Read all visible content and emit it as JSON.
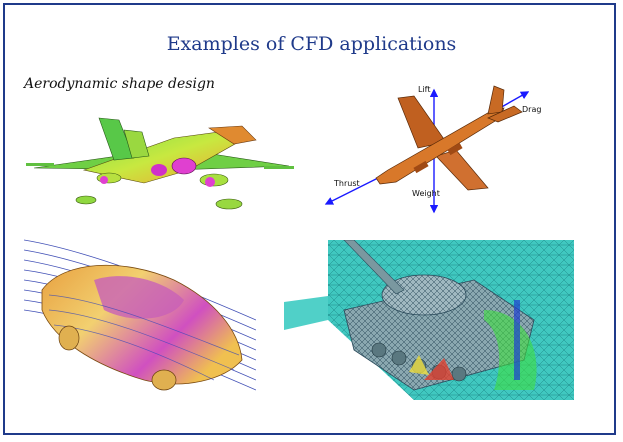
{
  "slide": {
    "title": "Examples of CFD applications",
    "subtitle": "Aerodynamic shape design"
  },
  "airliner_labels": {
    "lift": "Lift",
    "drag": "Drag",
    "thrust": "Thrust",
    "weight": "Weight"
  },
  "colors": {
    "frame": "#1f3a8a",
    "title": "#1f3a8a",
    "arrow": "#1a1aff"
  },
  "icons": [
    "fighter-jet-cfd-image",
    "airliner-forces-diagram",
    "car-streamlines-image",
    "tank-mesh-image"
  ]
}
